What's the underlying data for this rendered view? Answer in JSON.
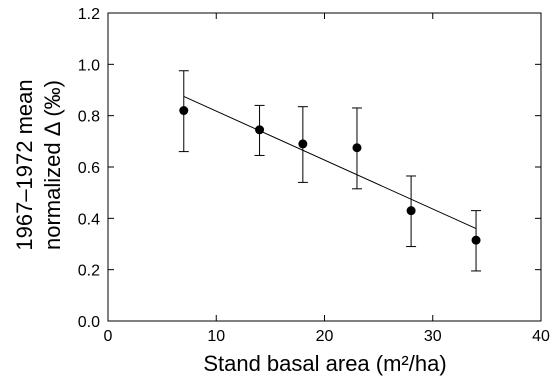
{
  "chart_data": {
    "type": "scatter",
    "xlabel": "Stand basal area (m²/ha)",
    "ylabel_line1": "1967–1972 mean",
    "ylabel_line2": "normalized Δ (‰)",
    "xlim": [
      0,
      40
    ],
    "ylim": [
      0.0,
      1.2
    ],
    "x_ticks": [
      0,
      10,
      20,
      30,
      40
    ],
    "x_tick_labels": [
      "0",
      "10",
      "20",
      "30",
      "40"
    ],
    "y_ticks": [
      0.0,
      0.2,
      0.4,
      0.6,
      0.8,
      1.0,
      1.2
    ],
    "y_tick_labels": [
      "0.0",
      "0.2",
      "0.4",
      "0.6",
      "0.8",
      "1.0",
      "1.2"
    ],
    "grid": false,
    "series": [
      {
        "x": [
          7,
          14,
          18,
          23,
          28,
          34
        ],
        "y": [
          0.82,
          0.745,
          0.69,
          0.675,
          0.43,
          0.315
        ],
        "err_low": [
          0.66,
          0.645,
          0.54,
          0.515,
          0.29,
          0.195
        ],
        "err_high": [
          0.975,
          0.84,
          0.835,
          0.83,
          0.565,
          0.43
        ]
      }
    ],
    "fit_line": {
      "x": [
        7,
        34
      ],
      "y": [
        0.875,
        0.36
      ]
    }
  }
}
